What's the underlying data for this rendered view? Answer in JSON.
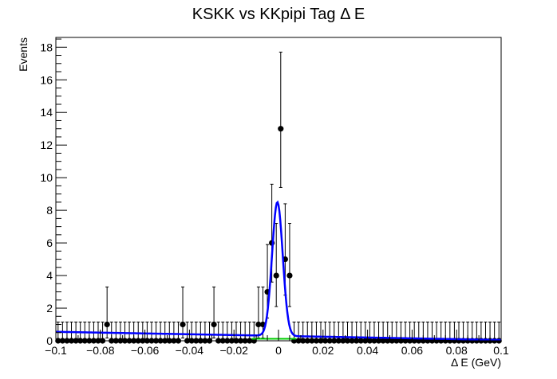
{
  "chart_data": {
    "type": "scatter",
    "title": "KSKK vs KKpipi Tag Δ E",
    "xlabel": "Δ E (GeV)",
    "ylabel": "Events",
    "xlim": [
      -0.1,
      0.1
    ],
    "ylim": [
      0,
      18.6
    ],
    "x_ticks": [
      -0.1,
      -0.08,
      -0.06,
      -0.04,
      -0.02,
      0,
      0.02,
      0.04,
      0.06,
      0.08,
      0.1
    ],
    "x_tick_labels": [
      "−0.1",
      "−0.08",
      "−0.06",
      "−0.04",
      "−0.02",
      "0",
      "0.02",
      "0.04",
      "0.06",
      "0.08",
      "0.1"
    ],
    "y_ticks": [
      0,
      2,
      4,
      6,
      8,
      10,
      12,
      14,
      16,
      18
    ],
    "y_tick_labels": [
      "0",
      "2",
      "4",
      "6",
      "8",
      "10",
      "12",
      "14",
      "16",
      "18"
    ],
    "grid": false,
    "bins": 100,
    "nonzero_points": [
      {
        "x": -0.077,
        "y": 1,
        "err_lo": 0.83,
        "err_hi": 2.3
      },
      {
        "x": -0.043,
        "y": 1,
        "err_lo": 0.83,
        "err_hi": 2.3
      },
      {
        "x": -0.029,
        "y": 1,
        "err_lo": 0.83,
        "err_hi": 2.3
      },
      {
        "x": -0.009,
        "y": 1,
        "err_lo": 0.83,
        "err_hi": 2.3
      },
      {
        "x": -0.007,
        "y": 1,
        "err_lo": 0.83,
        "err_hi": 2.3
      },
      {
        "x": -0.005,
        "y": 3,
        "err_lo": 1.6,
        "err_hi": 2.9
      },
      {
        "x": -0.003,
        "y": 6,
        "err_lo": 2.4,
        "err_hi": 3.6
      },
      {
        "x": -0.001,
        "y": 4,
        "err_lo": 1.9,
        "err_hi": 3.2
      },
      {
        "x": 0.001,
        "y": 13,
        "err_lo": 3.6,
        "err_hi": 4.7
      },
      {
        "x": 0.003,
        "y": 5,
        "err_lo": 2.2,
        "err_hi": 3.4
      },
      {
        "x": 0.005,
        "y": 4,
        "err_lo": 1.9,
        "err_hi": 3.2
      }
    ],
    "zero_err_hi": 1.15,
    "fit_total": {
      "name": "",
      "color": "#0000ff",
      "background_at_xmin": 0.55,
      "background_at_xmax": 0.05,
      "peak_mean": -0.0005,
      "peak_height": 8.2,
      "peak_sigma": 0.0024
    },
    "signal_component": {
      "color": "#00cc00",
      "x_range": [
        -0.012,
        0.008
      ],
      "level": 0.12
    }
  }
}
